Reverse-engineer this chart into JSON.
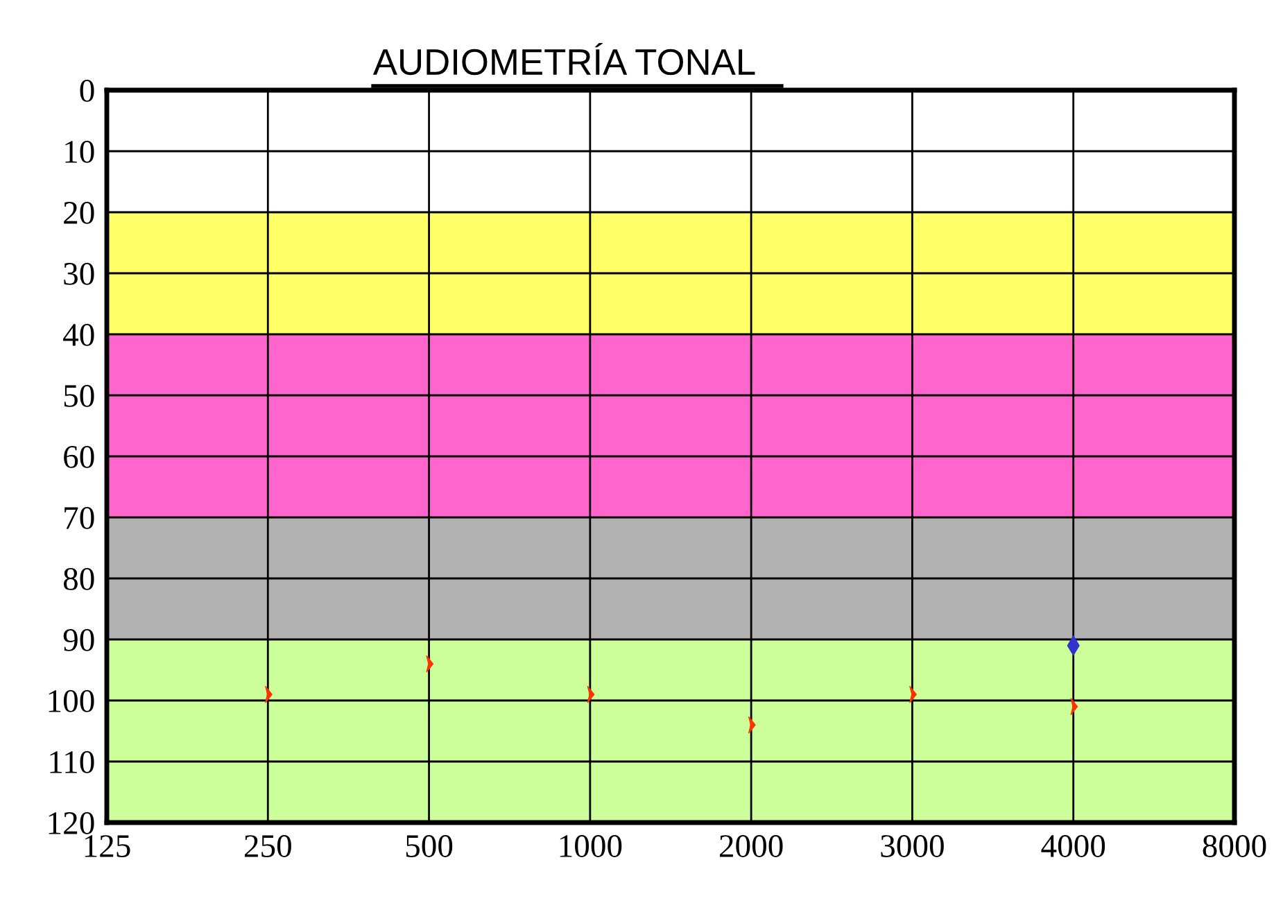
{
  "chart_data": {
    "type": "scatter",
    "title": "AUDIOMETRÍA TONAL",
    "categories": [
      "125",
      "250",
      "500",
      "1000",
      "2000",
      "3000",
      "4000",
      "8000"
    ],
    "ylim": [
      120,
      0
    ],
    "yticks": [
      0,
      10,
      20,
      30,
      40,
      50,
      60,
      70,
      80,
      90,
      100,
      110,
      120
    ],
    "grid": true,
    "bands": [
      {
        "axis": "y",
        "from": 20,
        "to": 40,
        "color": "#ffff66"
      },
      {
        "axis": "y",
        "from": 40,
        "to": 70,
        "color": "#ff66cc"
      },
      {
        "axis": "y",
        "from": 70,
        "to": 90,
        "color": "#b2b2b2"
      },
      {
        "axis": "y",
        "from": 90,
        "to": 120,
        "color": "#ccff99"
      }
    ],
    "series": [
      {
        "color": "#ff3300",
        "values": [
          null,
          99,
          94,
          99,
          104,
          99,
          101,
          null
        ]
      },
      {
        "color": "#3333cc",
        "values": [
          null,
          null,
          null,
          null,
          null,
          null,
          91,
          null
        ]
      }
    ]
  }
}
